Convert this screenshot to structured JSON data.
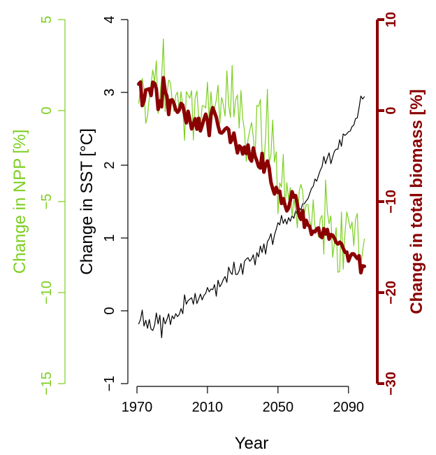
{
  "chart_data": {
    "type": "line",
    "xlabel": "Year",
    "x_ticks": [
      1970,
      2010,
      2050,
      2090
    ],
    "xlim": [
      1970,
      2100
    ],
    "axes": {
      "sst": {
        "label": "Change in SST [°C]",
        "ylim": [
          -1,
          4
        ],
        "ticks": [
          "-1",
          "0",
          "1",
          "2",
          "3",
          "4"
        ],
        "color": "#000000"
      },
      "npp": {
        "label": "Change in NPP [%]",
        "ylim": [
          -15,
          5
        ],
        "ticks": [
          "-15",
          "-10",
          "-5",
          "0",
          "5"
        ],
        "color": "#7ccf1f"
      },
      "biomass": {
        "label": "Change in total biomass [%]",
        "ylim": [
          -30,
          10
        ],
        "ticks": [
          "-30",
          "-20",
          "-10",
          "0",
          "10"
        ],
        "color": "#8b0000"
      }
    },
    "x": [
      1971,
      1972,
      1973,
      1974,
      1975,
      1976,
      1977,
      1978,
      1979,
      1980,
      1981,
      1982,
      1983,
      1984,
      1985,
      1986,
      1987,
      1988,
      1989,
      1990,
      1991,
      1992,
      1993,
      1994,
      1995,
      1996,
      1997,
      1998,
      1999,
      2000,
      2001,
      2002,
      2003,
      2004,
      2005,
      2006,
      2007,
      2008,
      2009,
      2010,
      2011,
      2012,
      2013,
      2014,
      2015,
      2016,
      2017,
      2018,
      2019,
      2020,
      2021,
      2022,
      2023,
      2024,
      2025,
      2026,
      2027,
      2028,
      2029,
      2030,
      2031,
      2032,
      2033,
      2034,
      2035,
      2036,
      2037,
      2038,
      2039,
      2040,
      2041,
      2042,
      2043,
      2044,
      2045,
      2046,
      2047,
      2048,
      2049,
      2050,
      2051,
      2052,
      2053,
      2054,
      2055,
      2056,
      2057,
      2058,
      2059,
      2060,
      2061,
      2062,
      2063,
      2064,
      2065,
      2066,
      2067,
      2068,
      2069,
      2070,
      2071,
      2072,
      2073,
      2074,
      2075,
      2076,
      2077,
      2078,
      2079,
      2080,
      2081,
      2082,
      2083,
      2084,
      2085,
      2086,
      2087,
      2088,
      2089,
      2090,
      2091,
      2092,
      2093,
      2094,
      2095,
      2096,
      2097,
      2098,
      2099
    ],
    "series": [
      {
        "axis": "sst",
        "width": 1.2,
        "values": [
          -0.18,
          -0.12,
          0.01,
          -0.21,
          -0.13,
          -0.24,
          -0.12,
          -0.25,
          -0.27,
          -0.2,
          -0.03,
          -0.18,
          -0.06,
          -0.37,
          -0.09,
          -0.18,
          -0.12,
          -0.04,
          -0.19,
          -0.07,
          -0.11,
          -0.04,
          -0.08,
          -0.05,
          0.03,
          -0.04,
          0.22,
          0.09,
          0.14,
          0.16,
          0.18,
          0.09,
          0.24,
          0.1,
          0.16,
          0.23,
          0.15,
          0.21,
          0.24,
          0.32,
          0.26,
          0.3,
          0.29,
          0.36,
          0.2,
          0.42,
          0.33,
          0.37,
          0.43,
          0.47,
          0.39,
          0.6,
          0.53,
          0.5,
          0.67,
          0.5,
          0.5,
          0.55,
          0.65,
          0.5,
          0.68,
          0.71,
          0.73,
          0.68,
          0.71,
          0.77,
          0.63,
          0.8,
          0.74,
          0.89,
          0.8,
          0.92,
          0.78,
          0.95,
          0.99,
          1.06,
          0.91,
          1.04,
          1.12,
          1.21,
          1.18,
          1.31,
          1.2,
          1.26,
          1.19,
          1.28,
          1.23,
          1.31,
          1.27,
          1.38,
          1.33,
          1.41,
          1.39,
          1.47,
          1.47,
          1.51,
          1.54,
          1.61,
          1.68,
          1.71,
          1.81,
          1.78,
          1.86,
          1.93,
          1.98,
          2.12,
          2.02,
          2.1,
          2.17,
          2.02,
          2.11,
          2.19,
          2.22,
          2.22,
          2.35,
          2.26,
          2.43,
          2.41,
          2.43,
          2.46,
          2.47,
          2.53,
          2.55,
          2.64,
          2.65,
          2.79,
          2.95,
          2.91,
          2.94
        ]
      },
      {
        "axis": "npp",
        "width": 1.2,
        "values": [
          0.41,
          1.22,
          1.76,
          1.18,
          -0.7,
          -0.31,
          0.69,
          1.49,
          2.23,
          1.58,
          2.74,
          -0.16,
          0.72,
          1.82,
          3.94,
          -0.05,
          0.92,
          1.68,
          1.53,
          0.58,
          -0.05,
          0.84,
          1.02,
          -0.14,
          1.04,
          0.26,
          -1.64,
          1.04,
          0.86,
          0.68,
          1.1,
          -1.62,
          0.7,
          1.08,
          -0.34,
          -0.84,
          0.26,
          0.25,
          0.14,
          1.56,
          -0.57,
          1.04,
          -0.24,
          0.09,
          0.58,
          1.4,
          -0.74,
          0.73,
          0.32,
          -0.31,
          2.19,
          0.33,
          -0.37,
          2.48,
          -0.35,
          0.6,
          0.86,
          -0.96,
          1.11,
          -0.43,
          -1.09,
          -2.78,
          -1.58,
          -1.09,
          -0.65,
          -1.44,
          -2.65,
          0.28,
          0.24,
          0.61,
          -2.4,
          -2.91,
          -1.46,
          1.17,
          -2.88,
          -2.43,
          -0.52,
          -2.84,
          -2.26,
          -5.66,
          -3.97,
          -4.2,
          -2.41,
          -5.36,
          -3.96,
          -4.86,
          -4.23,
          -5.79,
          -4.89,
          -5.47,
          -6.44,
          -4.46,
          -4.05,
          -4.44,
          -5.73,
          -5.17,
          -5.16,
          -6.11,
          -6.33,
          -4.9,
          -6.41,
          -6.43,
          -6.95,
          -5.93,
          -5.76,
          -7.89,
          -3.81,
          -5.56,
          -6.22,
          -5.78,
          -8.06,
          -7.27,
          -6.43,
          -8.88,
          -8.85,
          -5.57,
          -8.72,
          -6.73,
          -5.57,
          -5.99,
          -6.49,
          -6.12,
          -7.42,
          -5.97,
          -5.65,
          -8.13,
          -8.49,
          -7.74,
          -7.05
        ]
      },
      {
        "axis": "biomass",
        "width": 5,
        "values": [
          2.91,
          3.14,
          0.55,
          1.06,
          2.27,
          2.33,
          2.4,
          1.66,
          3.12,
          3.0,
          2.39,
          0.13,
          1.06,
          0.42,
          3.62,
          2.08,
          1.58,
          -0.43,
          1.13,
          1.18,
          0.79,
          0.11,
          -0.18,
          0.07,
          0.79,
          0.6,
          -0.42,
          -1.35,
          -0.08,
          -1.01,
          -2.0,
          -1.53,
          -0.89,
          -2.04,
          -0.84,
          -2.23,
          -1.63,
          -0.96,
          -0.39,
          -1.1,
          -2.74,
          -0.46,
          0.33,
          -0.19,
          -0.73,
          -1.65,
          -2.38,
          -2.47,
          -2.29,
          -2.03,
          -1.89,
          -2.07,
          -3.5,
          -3.16,
          -2.46,
          -3.6,
          -4.65,
          -3.88,
          -4.05,
          -4.77,
          -4.01,
          -4.71,
          -3.78,
          -5.25,
          -5.55,
          -4.1,
          -5.02,
          -5.51,
          -6.15,
          -6.31,
          -4.7,
          -6.76,
          -5.97,
          -5.54,
          -6.32,
          -7.87,
          -8.57,
          -9.16,
          -8.44,
          -8.99,
          -8.87,
          -10.2,
          -9.67,
          -10.41,
          -11.02,
          -10.72,
          -9.85,
          -8.91,
          -9.51,
          -9.34,
          -10.34,
          -11.53,
          -11.95,
          -10.99,
          -12.83,
          -12.06,
          -12.56,
          -12.74,
          -13.61,
          -13.26,
          -13.32,
          -12.99,
          -12.89,
          -13.8,
          -13.95,
          -12.97,
          -13.57,
          -13.06,
          -14.13,
          -13.62,
          -13.7,
          -14.0,
          -14.49,
          -14.65,
          -14.46,
          -14.63,
          -15.14,
          -15.57,
          -15.55,
          -16.53,
          -16.01,
          -15.74,
          -15.75,
          -16.02,
          -16.25,
          -15.95,
          -17.82,
          -17.06,
          -17.11
        ]
      }
    ]
  }
}
